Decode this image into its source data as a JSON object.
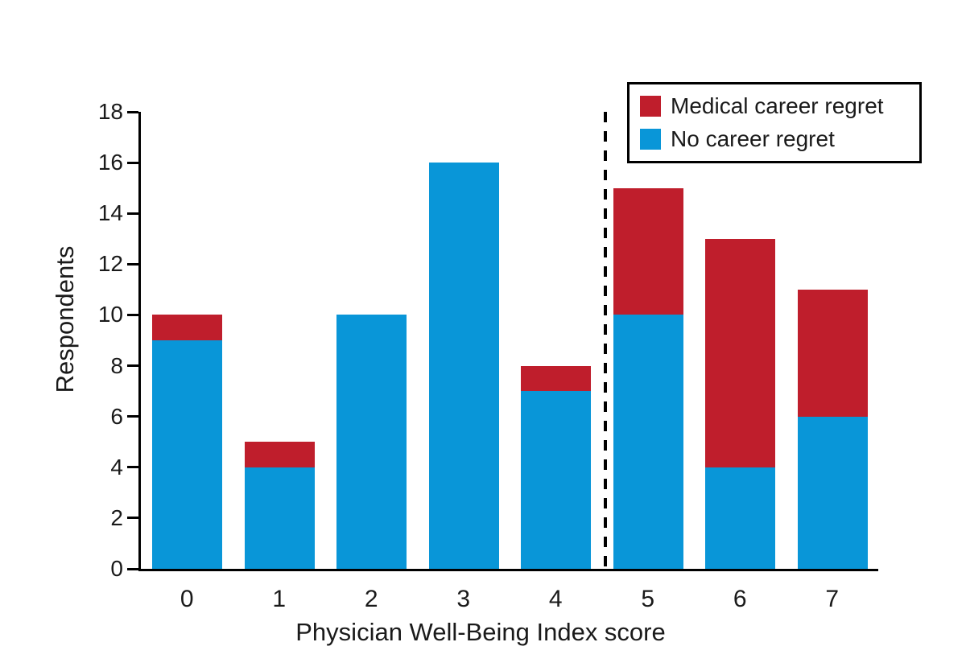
{
  "chart_data": {
    "type": "bar",
    "stacked": true,
    "xlabel": "Physician Well-Being Index score",
    "ylabel": "Respondents",
    "categories": [
      "0",
      "1",
      "2",
      "3",
      "4",
      "5",
      "6",
      "7"
    ],
    "series": [
      {
        "name": "No career regret",
        "color": "#0996d8",
        "values": [
          9,
          4,
          10,
          16,
          7,
          10,
          4,
          6
        ]
      },
      {
        "name": "Medical career regret",
        "color": "#bf1e2c",
        "values": [
          1,
          1,
          0,
          0,
          1,
          5,
          9,
          5
        ]
      }
    ],
    "legend": {
      "position": "top-right",
      "entries": [
        {
          "label": "Medical career regret",
          "color": "#bf1e2c"
        },
        {
          "label": "No career regret",
          "color": "#0996d8"
        }
      ]
    },
    "ylim": [
      0,
      18
    ],
    "yticks": [
      0,
      2,
      4,
      6,
      8,
      10,
      12,
      14,
      16,
      18
    ],
    "grid": false,
    "axis_color": "#000000",
    "divider": {
      "style": "dashed",
      "between_categories": [
        "4",
        "5"
      ]
    }
  }
}
